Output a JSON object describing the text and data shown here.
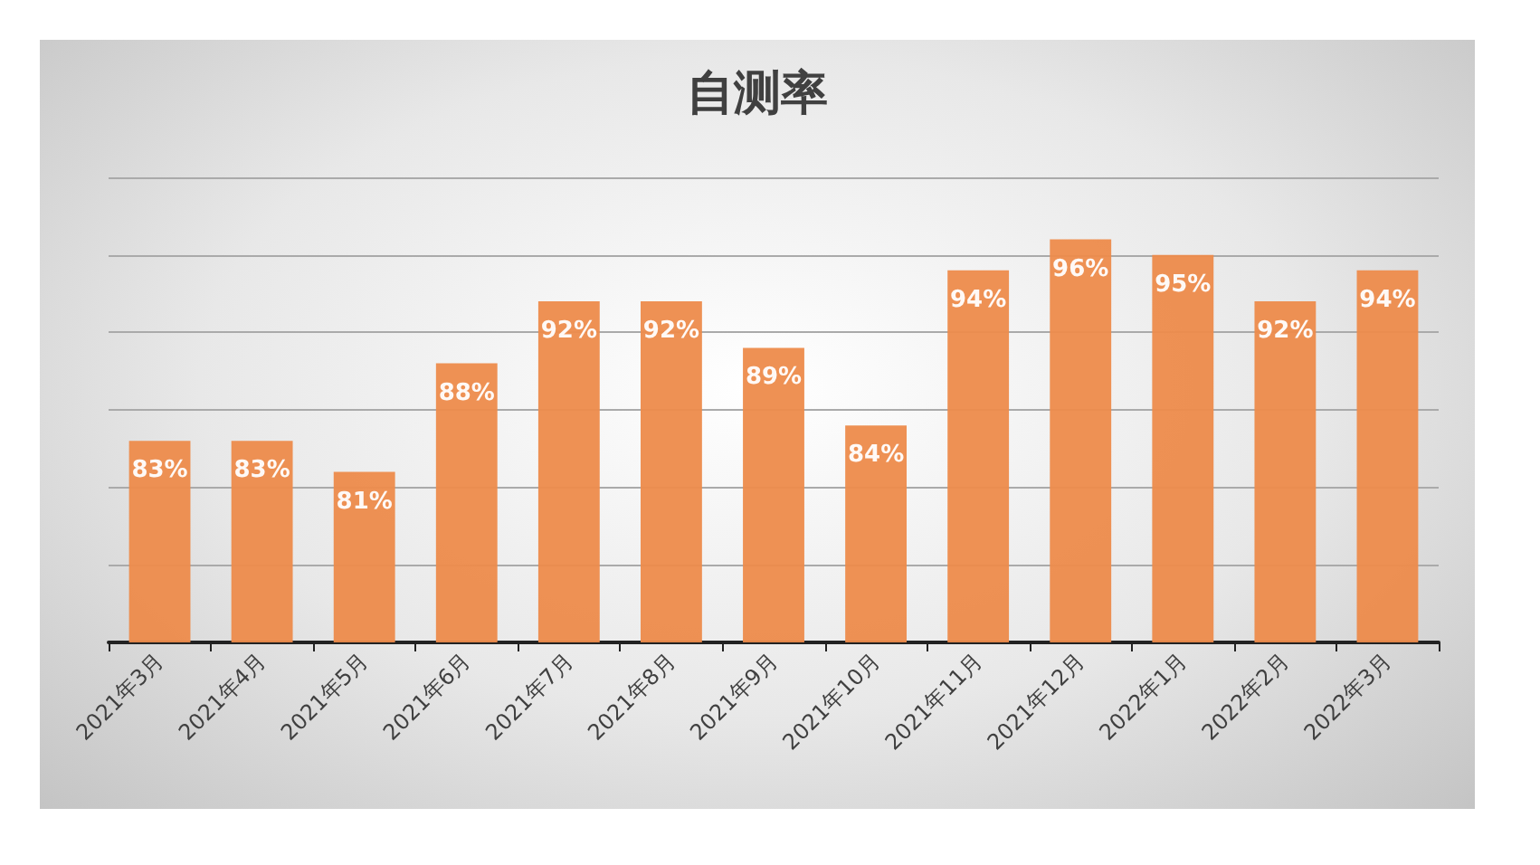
{
  "chart_data": {
    "type": "bar",
    "title": "自测率",
    "categories": [
      "2021年3月",
      "2021年4月",
      "2021年5月",
      "2021年6月",
      "2021年7月",
      "2021年8月",
      "2021年9月",
      "2021年10月",
      "2021年11月",
      "2021年12月",
      "2022年1月",
      "2022年2月",
      "2022年3月"
    ],
    "values": [
      83,
      83,
      81,
      88,
      92,
      92,
      89,
      84,
      94,
      96,
      95,
      92,
      94
    ],
    "value_labels": [
      "83%",
      "83%",
      "81%",
      "88%",
      "92%",
      "92%",
      "89%",
      "84%",
      "94%",
      "96%",
      "95%",
      "92%",
      "94%"
    ],
    "color": "#ed8b4b",
    "ylim": [
      70,
      100
    ],
    "yticks": [
      70,
      75,
      80,
      85,
      90,
      95,
      100
    ],
    "tick_labels": "x",
    "grid": "y"
  }
}
